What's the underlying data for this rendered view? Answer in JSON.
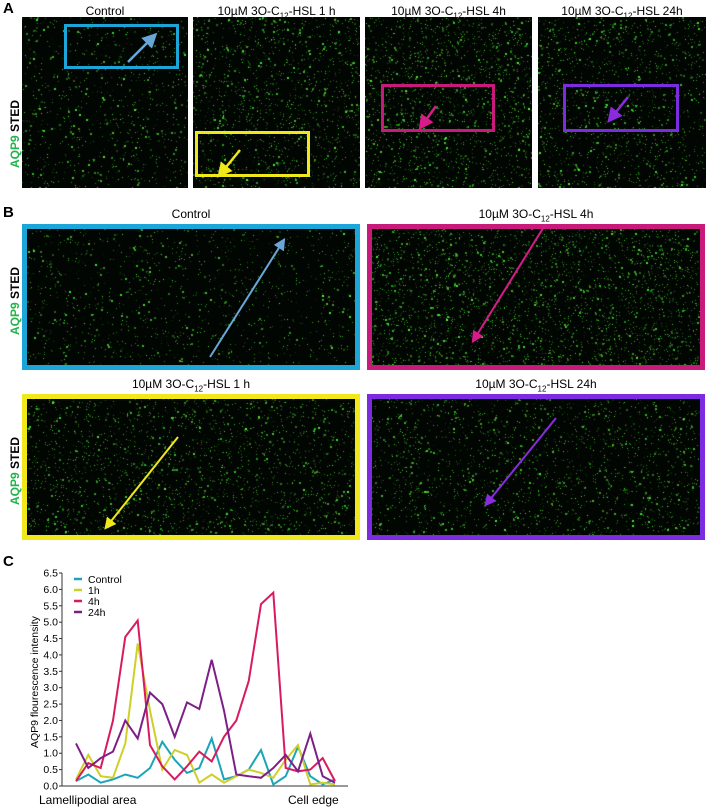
{
  "panels": {
    "a": "A",
    "b": "B",
    "c": "C"
  },
  "stain_label": {
    "protein": "AQP9",
    "method": "STED"
  },
  "conditions": {
    "control": "Control",
    "h1": {
      "pre": "10µM 3O-C",
      "sub": "12",
      "post": "-HSL  1 h"
    },
    "h4": {
      "pre": "10µM 3O-C",
      "sub": "12",
      "post": "-HSL  4h"
    },
    "h24": {
      "pre": "10µM 3O-C",
      "sub": "12",
      "post": "-HSL  24h"
    }
  },
  "colors": {
    "control": "#1ba5b8",
    "h1": "#cfcf2a",
    "h4": "#d81b60",
    "h24": "#7d1f86"
  },
  "chart_data": {
    "type": "line",
    "ylabel": "AQP9 flourescence intensity",
    "xlabel_left": "Lamellipodial area",
    "xlabel_right": "Cell edge",
    "ylim": [
      0,
      6.5
    ],
    "yticks": [
      "0.0",
      "0.5",
      "1.0",
      "1.5",
      "2.0",
      "2.5",
      "3.0",
      "3.5",
      "4.0",
      "4.5",
      "5.0",
      "5.5",
      "6.0",
      "6.5"
    ],
    "legend_position": "top-left",
    "series": [
      {
        "name": "Control",
        "color": "#1ba5b8",
        "values": [
          0.15,
          0.35,
          0.1,
          0.2,
          0.35,
          0.25,
          0.55,
          1.35,
          0.8,
          0.4,
          0.55,
          1.45,
          0.2,
          0.3,
          0.5,
          1.1,
          0.05,
          0.3,
          1.2,
          0.3,
          0.05,
          0.2
        ]
      },
      {
        "name": "1h",
        "color": "#cfcf2a",
        "values": [
          0.2,
          0.95,
          0.3,
          0.25,
          1.3,
          4.35,
          2.3,
          0.5,
          1.1,
          0.95,
          0.1,
          0.35,
          0.1,
          0.3,
          0.5,
          0.4,
          0.25,
          0.8,
          1.25,
          0.05,
          0.1,
          0.05
        ]
      },
      {
        "name": "4h",
        "color": "#d81b60",
        "values": [
          0.15,
          0.7,
          0.55,
          2.0,
          4.55,
          5.05,
          1.25,
          0.6,
          0.2,
          0.6,
          1.05,
          0.75,
          1.5,
          2.0,
          3.2,
          5.55,
          5.9,
          0.55,
          0.45,
          0.5,
          0.85,
          0.15
        ]
      },
      {
        "name": "24h",
        "color": "#7d1f86",
        "values": [
          1.3,
          0.55,
          0.85,
          1.05,
          2.0,
          1.45,
          2.85,
          2.5,
          1.5,
          2.55,
          2.35,
          3.85,
          2.3,
          0.35,
          0.3,
          0.25,
          0.55,
          0.95,
          0.45,
          1.6,
          0.3,
          0.1
        ]
      }
    ]
  }
}
